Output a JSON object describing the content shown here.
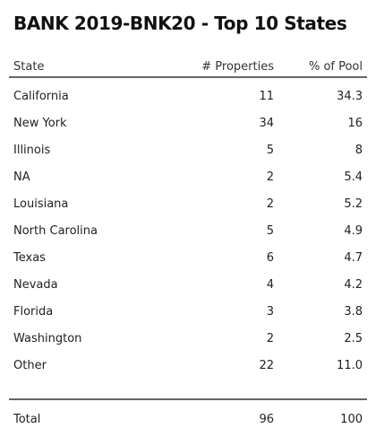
{
  "chart_data": {
    "type": "table",
    "title": "BANK 2019-BNK20 - Top 10 States",
    "columns": [
      "State",
      "# Properties",
      "% of Pool"
    ],
    "rows": [
      {
        "state": "California",
        "properties": "11",
        "pool": "34.3"
      },
      {
        "state": "New York",
        "properties": "34",
        "pool": "16"
      },
      {
        "state": "Illinois",
        "properties": "5",
        "pool": "8"
      },
      {
        "state": "NA",
        "properties": "2",
        "pool": "5.4"
      },
      {
        "state": "Louisiana",
        "properties": "2",
        "pool": "5.2"
      },
      {
        "state": "North Carolina",
        "properties": "5",
        "pool": "4.9"
      },
      {
        "state": "Texas",
        "properties": "6",
        "pool": "4.7"
      },
      {
        "state": "Nevada",
        "properties": "4",
        "pool": "4.2"
      },
      {
        "state": "Florida",
        "properties": "3",
        "pool": "3.8"
      },
      {
        "state": "Washington",
        "properties": "2",
        "pool": "2.5"
      },
      {
        "state": "Other",
        "properties": "22",
        "pool": "11.0"
      }
    ],
    "total": {
      "label": "Total",
      "properties": "96",
      "pool": "100"
    }
  }
}
